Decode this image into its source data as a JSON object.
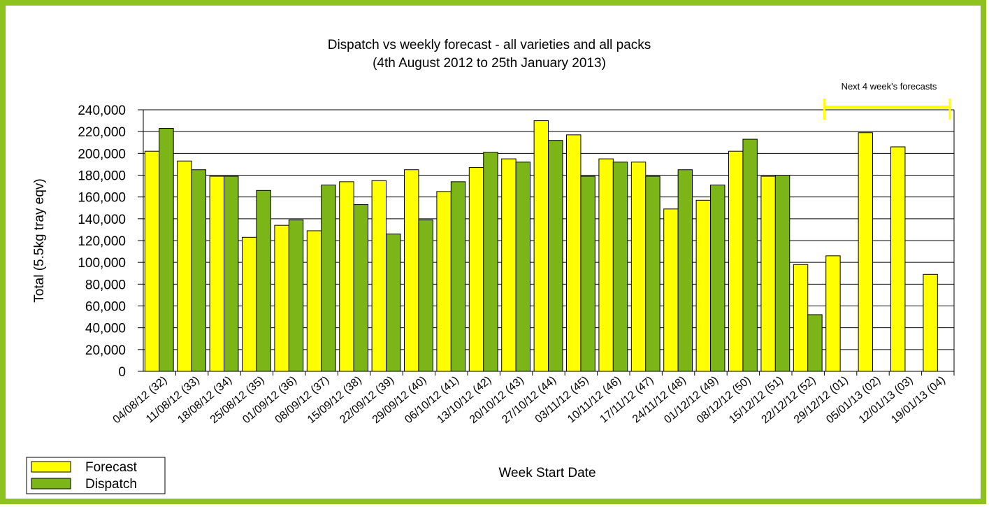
{
  "chart_data": {
    "type": "bar",
    "title": "Dispatch vs weekly forecast - all varieties and all packs",
    "subtitle": "(4th August 2012 to 25th January 2013)",
    "annotation": "Next 4 week's forecasts",
    "x_label": "Week Start Date",
    "y_label": "Total (5.5kg tray eqv)",
    "categories": [
      "04/08/12 (32)",
      "11/08/12 (33)",
      "18/08/12 (34)",
      "25/08/12 (35)",
      "01/09/12 (36)",
      "08/09/12 (37)",
      "15/09/12 (38)",
      "22/09/12 (39)",
      "29/09/12 (40)",
      "06/10/12 (41)",
      "13/10/12 (42)",
      "20/10/12 (43)",
      "27/10/12 (44)",
      "03/11/12 (45)",
      "10/11/12 (46)",
      "17/11/12 (47)",
      "24/11/12 (48)",
      "01/12/12 (49)",
      "08/12/12 (50)",
      "15/12/12 (51)",
      "22/12/12 (52)",
      "29/12/12 (01)",
      "05/01/13 (02)",
      "12/01/13 (03)",
      "19/01/13 (04)"
    ],
    "series": [
      {
        "name": "Forecast",
        "color": "#ffff00",
        "values": [
          202000,
          193000,
          179000,
          123000,
          134000,
          129000,
          174000,
          175000,
          185000,
          165000,
          187000,
          195000,
          230000,
          217000,
          195000,
          192000,
          149000,
          157000,
          202000,
          179000,
          98000,
          106000,
          219000,
          206000,
          89000
        ]
      },
      {
        "name": "Dispatch",
        "color": "#7cb518",
        "values": [
          223000,
          185000,
          179000,
          166000,
          139000,
          171000,
          153000,
          126000,
          139000,
          174000,
          201000,
          192000,
          212000,
          179000,
          192000,
          179000,
          185000,
          171000,
          213000,
          180000,
          52000,
          null,
          null,
          null,
          null
        ]
      }
    ],
    "ylim": [
      0,
      240000
    ],
    "yticks": [
      0,
      {
        "value": 20000,
        "label": "20,000"
      },
      {
        "value": 40000,
        "label": "40,000"
      },
      {
        "value": 60000,
        "label": "60,000"
      },
      {
        "value": 80000,
        "label": "80,000"
      },
      {
        "value": 100000,
        "label": "100,000"
      },
      {
        "value": 120000,
        "label": "120,000"
      },
      {
        "value": 140000,
        "label": "140,000"
      },
      {
        "value": 160000,
        "label": "160,000"
      },
      {
        "value": 180000,
        "label": "180,000"
      },
      {
        "value": 200000,
        "label": "200,000"
      },
      {
        "value": 220000,
        "label": "220,000"
      },
      {
        "value": 240000,
        "label": "240,000"
      }
    ],
    "grid": true,
    "legend": "bottom-left"
  }
}
